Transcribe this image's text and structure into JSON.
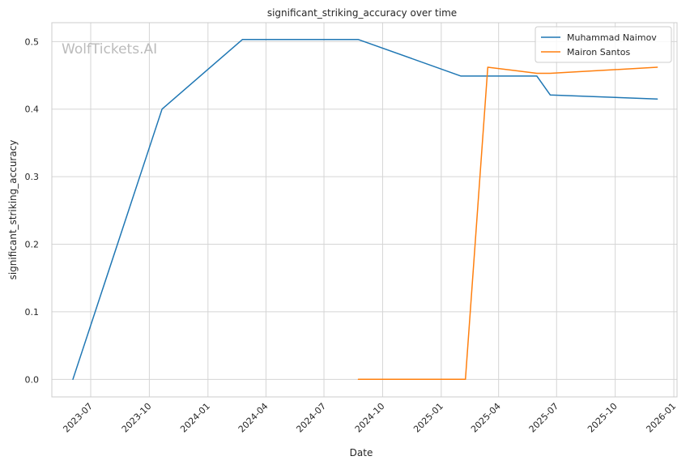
{
  "chart_data": {
    "type": "line",
    "title": "significant_striking_accuracy over time",
    "xlabel": "Date",
    "ylabel": "significant_striking_accuracy",
    "watermark": "WolfTickets.AI",
    "x_ticks": [
      "2023-07",
      "2023-10",
      "2024-01",
      "2024-04",
      "2024-07",
      "2024-10",
      "2025-01",
      "2025-04",
      "2025-07",
      "2025-10",
      "2026-01"
    ],
    "y_ticks": [
      "0.0",
      "0.1",
      "0.2",
      "0.3",
      "0.4",
      "0.5"
    ],
    "xlim": [
      "2023-05-01",
      "2026-01-06"
    ],
    "ylim": [
      -0.026,
      0.528
    ],
    "grid": true,
    "legend_position": "top-right",
    "series": [
      {
        "name": "Muhammad Naimov",
        "color": "#1f77b4",
        "x": [
          "2023-06-03",
          "2023-10-21",
          "2024-02-24",
          "2024-08-24",
          "2025-02-01",
          "2025-05-31",
          "2025-06-21",
          "2025-12-06"
        ],
        "y": [
          0.0,
          0.4,
          0.503,
          0.503,
          0.449,
          0.449,
          0.421,
          0.415
        ]
      },
      {
        "name": "Mairon Santos",
        "color": "#ff7f0e",
        "x": [
          "2024-08-24",
          "2025-02-08",
          "2025-03-15",
          "2025-05-31",
          "2025-06-21",
          "2025-12-06"
        ],
        "y": [
          0.0,
          0.0,
          0.462,
          0.453,
          0.453,
          0.462
        ]
      }
    ]
  }
}
